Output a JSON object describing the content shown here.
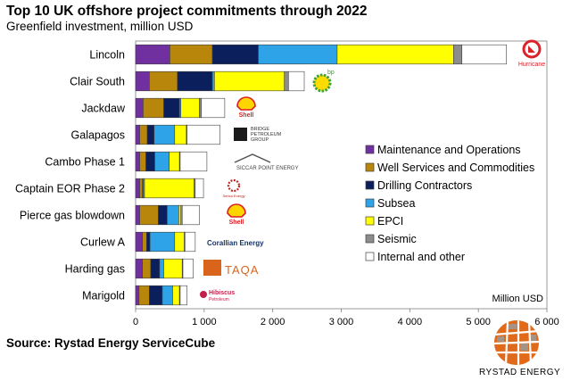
{
  "title": "Top 10 UK offshore project commitments through 2022",
  "subtitle": "Greenfield investment, million USD",
  "source": "Source: Rystad Energy ServiceCube",
  "brand": "RYSTAD ENERGY",
  "chart_data": {
    "type": "bar",
    "orientation": "horizontal",
    "stacked": true,
    "categories": [
      "Lincoln",
      "Clair South",
      "Jackdaw",
      "Galapagos",
      "Cambo Phase 1",
      "Captain EOR Phase 2",
      "Pierce gas blowdown",
      "Curlew A",
      "Harding gas",
      "Marigold"
    ],
    "series": [
      {
        "name": "Maintenance and Operations",
        "color": "#7030A0",
        "values": [
          500,
          200,
          110,
          60,
          60,
          60,
          60,
          100,
          100,
          50
        ]
      },
      {
        "name": "Well Services and Commodities",
        "color": "#B8860B",
        "values": [
          620,
          410,
          300,
          110,
          90,
          40,
          270,
          60,
          120,
          150
        ]
      },
      {
        "name": "Drilling Contractors",
        "color": "#0A1F5C",
        "values": [
          670,
          510,
          230,
          100,
          130,
          10,
          130,
          50,
          130,
          190
        ]
      },
      {
        "name": "Subsea",
        "color": "#2EA3E8",
        "values": [
          1150,
          30,
          20,
          300,
          210,
          20,
          170,
          360,
          60,
          150
        ]
      },
      {
        "name": "EPCI",
        "color": "#FFFF00",
        "values": [
          1700,
          1020,
          270,
          170,
          150,
          720,
          30,
          140,
          270,
          100
        ]
      },
      {
        "name": "Seismic",
        "color": "#8C8C8C",
        "values": [
          120,
          60,
          30,
          10,
          10,
          20,
          20,
          10,
          10,
          10
        ]
      },
      {
        "name": "Internal and other",
        "color": "#FFFFFF",
        "values": [
          650,
          230,
          340,
          480,
          390,
          120,
          250,
          150,
          150,
          100
        ]
      }
    ],
    "xlim": [
      0,
      6000
    ],
    "xticks": [
      "0",
      "1 000",
      "2 000",
      "3 000",
      "4 000",
      "5 000",
      "6 000"
    ],
    "xlabel": "Million USD",
    "legend_position": "right",
    "grid": false
  },
  "logos": [
    "Hurricane",
    "bp",
    "Shell",
    "BRIDGE PETROLEUM GROUP",
    "SICCAR POINT ENERGY",
    "Serica Energy",
    "Shell",
    "Corallian Energy",
    "TAQA",
    "Hibiscus Petroleum"
  ]
}
